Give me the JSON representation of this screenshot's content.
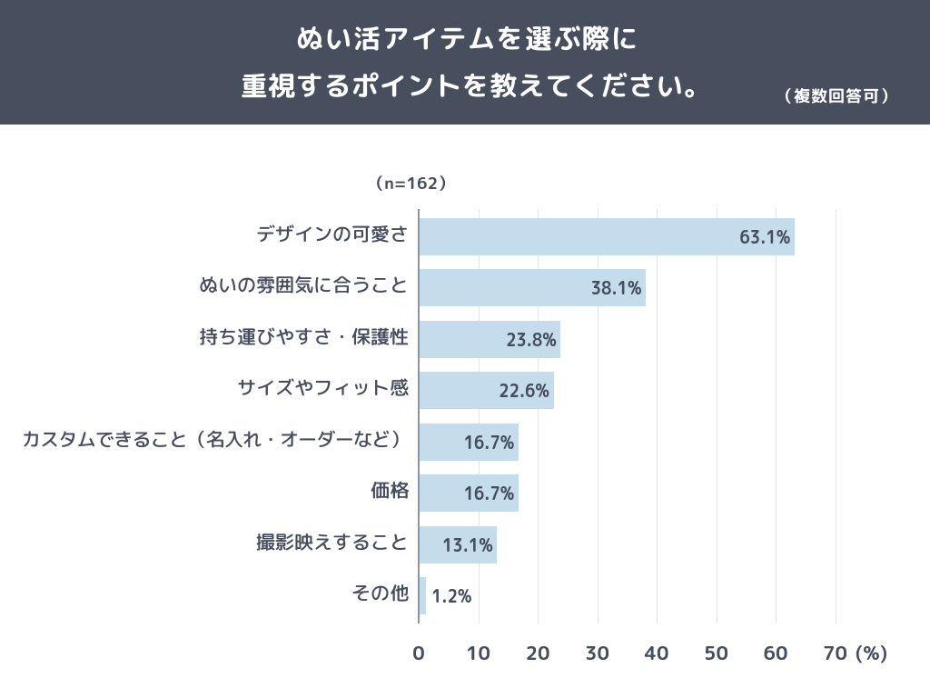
{
  "header": {
    "title_line1": "ぬい活アイテムを選ぶ際に",
    "title_line2": "重視するポイントを教えてください。",
    "note": "（複数回答可）"
  },
  "chart_data": {
    "type": "bar",
    "orientation": "horizontal",
    "title": "ぬい活アイテムを選ぶ際に重視するポイントを教えてください。",
    "sample_size_label": "（n=162）",
    "categories": [
      "デザインの可愛さ",
      "ぬいの雰囲気に合うこと",
      "持ち運びやすさ・保護性",
      "サイズやフィット感",
      "カスタムできること（名入れ・オーダーなど）",
      "価格",
      "撮影映えすること",
      "その他"
    ],
    "values": [
      63.1,
      38.1,
      23.8,
      22.6,
      16.7,
      16.7,
      13.1,
      1.2
    ],
    "value_labels": [
      "63.1%",
      "38.1%",
      "23.8%",
      "22.6%",
      "16.7%",
      "16.7%",
      "13.1%",
      "1.2%"
    ],
    "x_ticks": [
      "0",
      "10",
      "20",
      "30",
      "40",
      "50",
      "60",
      "70"
    ],
    "x_unit": "(%)",
    "xlim": [
      0,
      70
    ],
    "grid": true,
    "legend": null
  },
  "colors": {
    "header_bg": "#474e5e",
    "title_text": "#ffffff",
    "bar_fill": "#c5dcec",
    "label_text": "#454d5e",
    "gridline": "#e2e3e6",
    "axis_line": "#8f959f"
  }
}
